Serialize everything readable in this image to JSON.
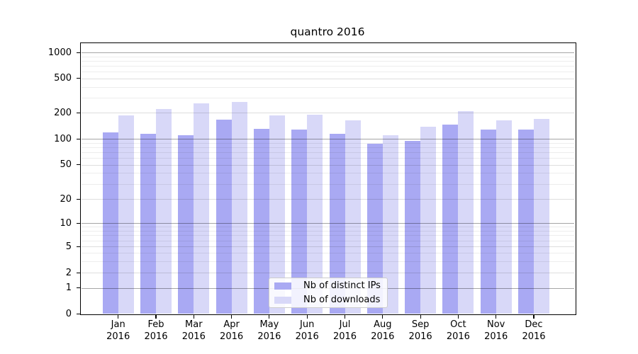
{
  "chart_data": {
    "type": "bar",
    "title": "quantro 2016",
    "xlabel": "",
    "ylabel": "",
    "categories": [
      "Jan 2016",
      "Feb 2016",
      "Mar 2016",
      "Apr 2016",
      "May 2016",
      "Jun 2016",
      "Jul 2016",
      "Aug 2016",
      "Sep 2016",
      "Oct 2016",
      "Nov 2016",
      "Dec 2016"
    ],
    "series": [
      {
        "name": "Nb of distinct IPs",
        "color": "#a9a9f3",
        "values": [
          118,
          114,
          110,
          166,
          131,
          129,
          115,
          87,
          94,
          146,
          128,
          129
        ]
      },
      {
        "name": "Nb of downloads",
        "color": "#d8d8f8",
        "values": [
          186,
          222,
          257,
          265,
          185,
          190,
          162,
          110,
          137,
          209,
          162,
          170
        ]
      }
    ],
    "y_ticks": [
      0,
      1,
      2,
      5,
      10,
      20,
      50,
      100,
      200,
      500,
      1000
    ],
    "y_scale": "log-like with linear 0-1 segment",
    "ylim": [
      0,
      1400
    ],
    "grid": true,
    "legend_position": "lower center",
    "colors": {
      "major_gridline": "rgba(0,0,0,0.35)",
      "sub_gridline": "rgba(0,0,0,0.13)",
      "minor_gridline": "rgba(0,0,0,0.07)",
      "legend_border": "#cccccc"
    }
  }
}
